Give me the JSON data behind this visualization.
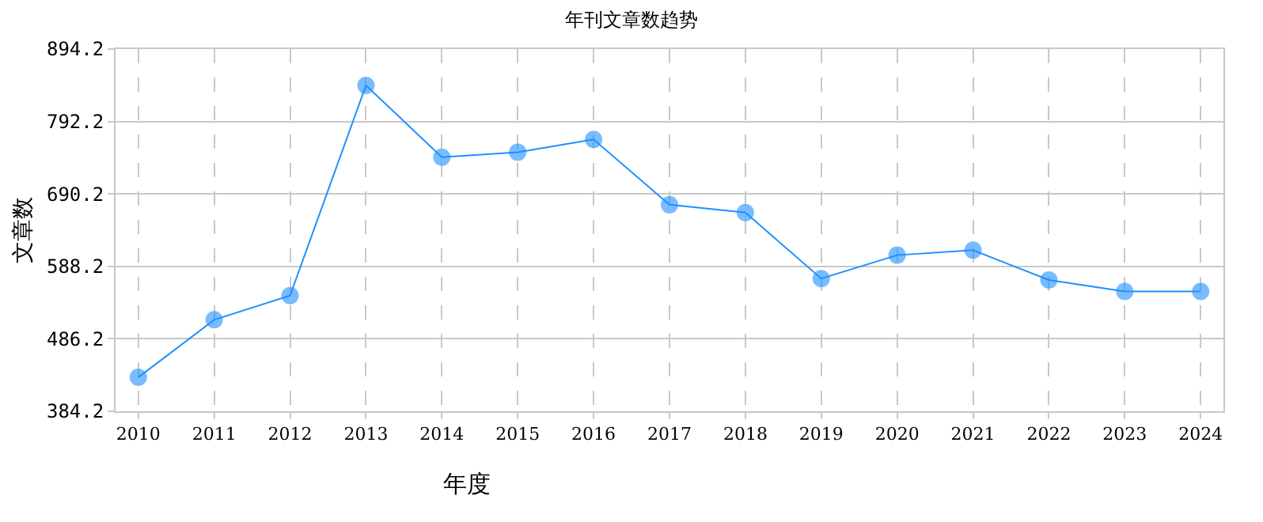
{
  "chart_data": {
    "type": "line",
    "title": "年刊文章数趋势",
    "xlabel": "年度",
    "ylabel": "文章数",
    "categories": [
      "2010",
      "2011",
      "2012",
      "2013",
      "2014",
      "2015",
      "2016",
      "2017",
      "2018",
      "2019",
      "2020",
      "2021",
      "2022",
      "2023",
      "2024"
    ],
    "series": [
      {
        "color": "#1e90ff",
        "values": [
          432,
          513,
          547,
          843,
          742,
          749,
          767,
          675,
          664,
          571,
          604,
          611,
          569,
          553,
          553
        ]
      }
    ],
    "ylim": [
      384.2,
      894.2
    ],
    "yticks": [
      {
        "value": 384.2,
        "label": "384.2"
      },
      {
        "value": 486.2,
        "label": "486.2"
      },
      {
        "value": 588.2,
        "label": "588.2"
      },
      {
        "value": 690.2,
        "label": "690.2"
      },
      {
        "value": 792.2,
        "label": "792.2"
      },
      {
        "value": 894.2,
        "label": "894.2"
      }
    ],
    "grid": true,
    "marker": "circle",
    "line_style": "solid"
  }
}
